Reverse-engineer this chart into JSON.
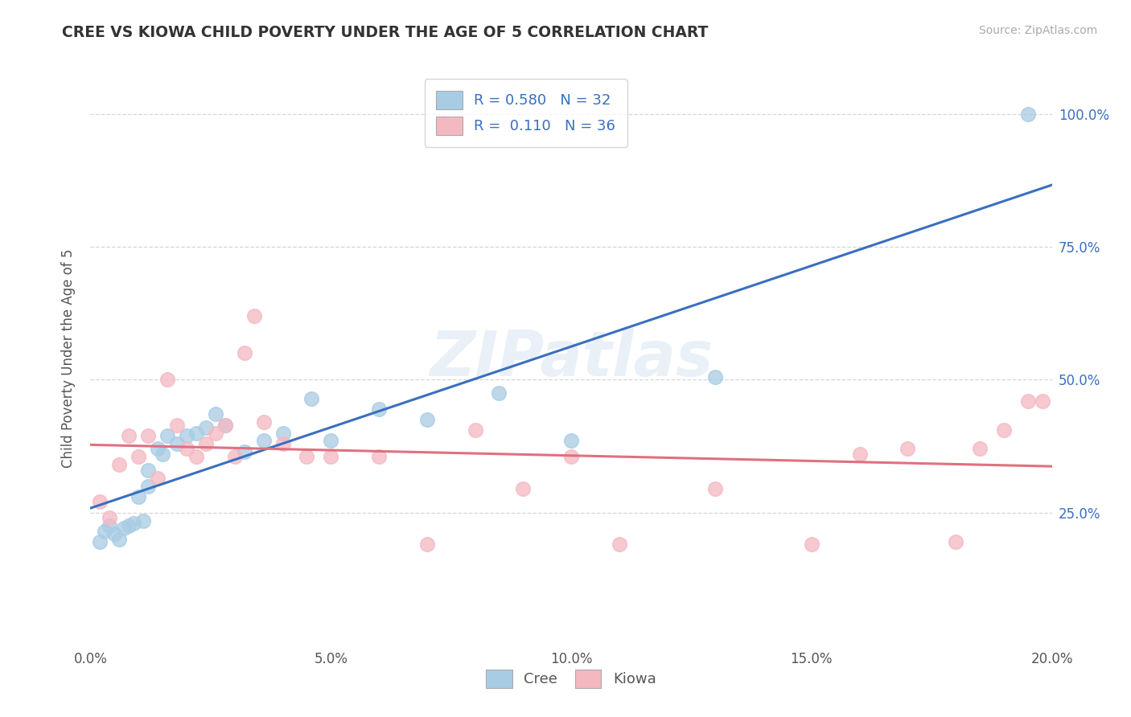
{
  "title": "CREE VS KIOWA CHILD POVERTY UNDER THE AGE OF 5 CORRELATION CHART",
  "source": "Source: ZipAtlas.com",
  "ylabel": "Child Poverty Under the Age of 5",
  "xlim": [
    0.0,
    0.2
  ],
  "ylim": [
    0.0,
    1.08
  ],
  "xtick_labels": [
    "0.0%",
    "5.0%",
    "10.0%",
    "15.0%",
    "20.0%"
  ],
  "xtick_vals": [
    0.0,
    0.05,
    0.1,
    0.15,
    0.2
  ],
  "ytick_labels": [
    "25.0%",
    "50.0%",
    "75.0%",
    "100.0%"
  ],
  "ytick_vals": [
    0.25,
    0.5,
    0.75,
    1.0
  ],
  "watermark_text": "ZIPatlas",
  "cree_R": 0.58,
  "cree_N": 32,
  "kiowa_R": 0.11,
  "kiowa_N": 36,
  "cree_color": "#a8cce4",
  "kiowa_color": "#f4b8c1",
  "cree_line_color": "#3a6fbf",
  "kiowa_line_color": "#e07080",
  "legend_text_color": "#3a6fbf",
  "cree_scatter_x": [
    0.002,
    0.003,
    0.004,
    0.005,
    0.006,
    0.007,
    0.008,
    0.009,
    0.01,
    0.011,
    0.012,
    0.012,
    0.014,
    0.015,
    0.016,
    0.018,
    0.02,
    0.022,
    0.024,
    0.026,
    0.028,
    0.032,
    0.036,
    0.04,
    0.046,
    0.05,
    0.06,
    0.07,
    0.085,
    0.1,
    0.13,
    0.195
  ],
  "cree_scatter_y": [
    0.195,
    0.215,
    0.225,
    0.21,
    0.2,
    0.22,
    0.225,
    0.23,
    0.28,
    0.235,
    0.3,
    0.33,
    0.37,
    0.36,
    0.395,
    0.38,
    0.395,
    0.4,
    0.41,
    0.435,
    0.415,
    0.365,
    0.385,
    0.4,
    0.465,
    0.385,
    0.445,
    0.425,
    0.475,
    0.385,
    0.505,
    1.0
  ],
  "kiowa_scatter_x": [
    0.002,
    0.004,
    0.006,
    0.008,
    0.01,
    0.012,
    0.014,
    0.016,
    0.018,
    0.02,
    0.022,
    0.024,
    0.026,
    0.028,
    0.03,
    0.032,
    0.034,
    0.036,
    0.04,
    0.045,
    0.05,
    0.06,
    0.07,
    0.08,
    0.09,
    0.1,
    0.11,
    0.13,
    0.15,
    0.16,
    0.17,
    0.18,
    0.185,
    0.19,
    0.195,
    0.198
  ],
  "kiowa_scatter_y": [
    0.27,
    0.24,
    0.34,
    0.395,
    0.355,
    0.395,
    0.315,
    0.5,
    0.415,
    0.37,
    0.355,
    0.38,
    0.4,
    0.415,
    0.355,
    0.55,
    0.62,
    0.42,
    0.38,
    0.355,
    0.355,
    0.355,
    0.19,
    0.405,
    0.295,
    0.355,
    0.19,
    0.295,
    0.19,
    0.36,
    0.37,
    0.195,
    0.37,
    0.405,
    0.46,
    0.46
  ],
  "background_color": "#ffffff",
  "grid_color": "#cccccc"
}
